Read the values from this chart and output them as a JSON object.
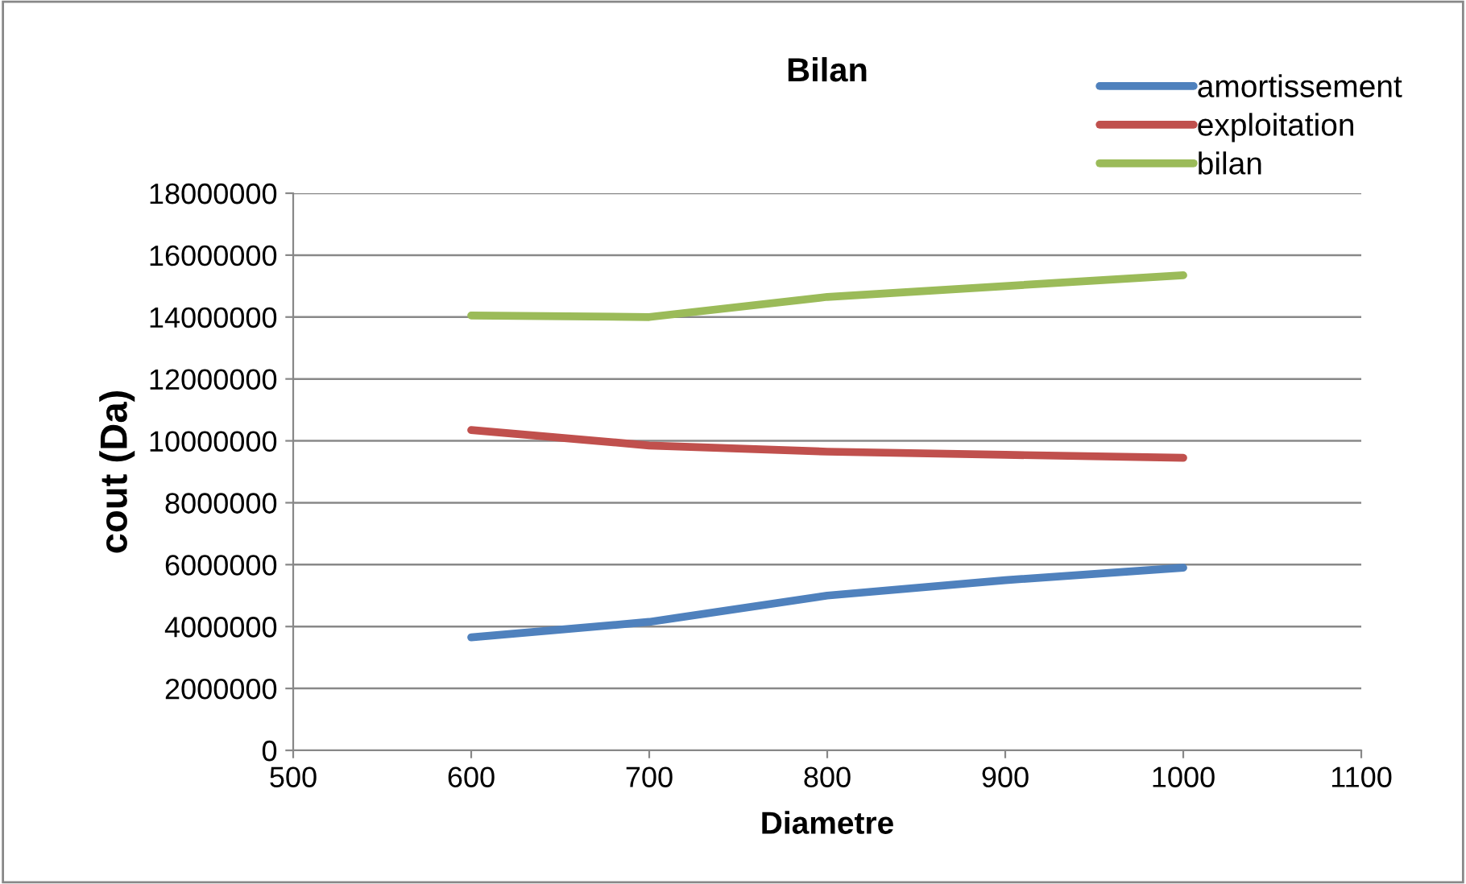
{
  "chart_data": {
    "type": "line",
    "title": "Bilan",
    "xlabel": "Diametre",
    "ylabel": "cout (Da)",
    "x": [
      600,
      700,
      800,
      900,
      1000
    ],
    "series": [
      {
        "name": "amortissement",
        "color": "#4f81bd",
        "values": [
          3650000,
          4150000,
          5000000,
          5500000,
          5900000
        ]
      },
      {
        "name": "exploitation",
        "color": "#c0504d",
        "values": [
          10350000,
          9850000,
          9650000,
          9550000,
          9450000
        ]
      },
      {
        "name": "bilan",
        "color": "#9bbb59",
        "values": [
          14050000,
          14000000,
          14650000,
          15000000,
          15350000
        ]
      }
    ],
    "xlim": [
      500,
      1100
    ],
    "xticks": [
      500,
      600,
      700,
      800,
      900,
      1000,
      1100
    ],
    "ylim": [
      0,
      18000000
    ],
    "yticks": [
      0,
      2000000,
      4000000,
      6000000,
      8000000,
      10000000,
      12000000,
      14000000,
      16000000,
      18000000
    ],
    "grid": "y",
    "legend": "top right",
    "marker": "none",
    "line_style": "solid"
  }
}
